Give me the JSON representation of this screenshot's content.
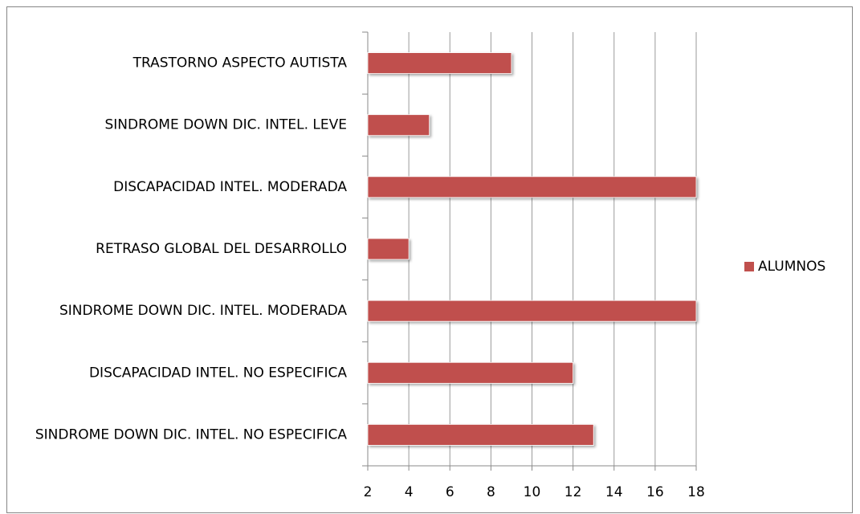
{
  "chart_data": {
    "type": "bar",
    "orientation": "horizontal",
    "categories": [
      "TRASTORNO ASPECTO AUTISTA",
      "SINDROME DOWN DIC. INTEL. LEVE",
      "DISCAPACIDAD INTEL. MODERADA",
      "RETRASO GLOBAL DEL DESARROLLO",
      "SINDROME DOWN DIC. INTEL. MODERADA",
      "DISCAPACIDAD INTEL. NO ESPECIFICA",
      "SINDROME DOWN DIC. INTEL. NO ESPECIFICA"
    ],
    "series": [
      {
        "name": "ALUMNOS",
        "color": "#c0504d",
        "values": [
          9,
          5,
          18,
          4,
          18,
          12,
          13
        ]
      }
    ],
    "xlim": [
      2,
      18
    ],
    "xticks": [
      2,
      4,
      6,
      8,
      10,
      12,
      14,
      16,
      18
    ],
    "grid": true,
    "legend": "right"
  }
}
